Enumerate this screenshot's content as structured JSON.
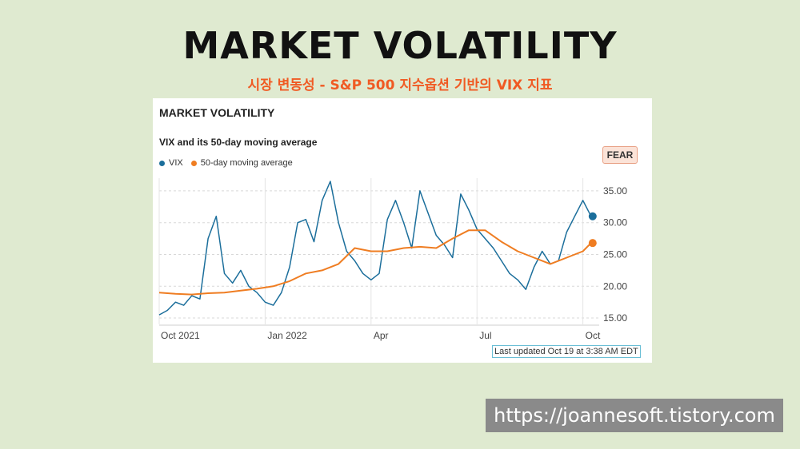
{
  "slide": {
    "title": "MARKET VOLATILITY",
    "subtitle": "시장 변동성 - S&P 500 지수옵션 기반의 VIX 지표",
    "watermark": "https://joannesoft.tistory.com"
  },
  "card": {
    "title": "MARKET VOLATILITY",
    "subtitle": "VIX and its 50-day moving average",
    "badge": "FEAR",
    "updated": "Last updated Oct 19 at 3:38 AM EDT"
  },
  "chart_data": {
    "type": "line",
    "title": "VIX and its 50-day moving average",
    "xlabel": "",
    "ylabel": "",
    "ylim": [
      14.0,
      37.0
    ],
    "yticks": [
      15.0,
      20.0,
      25.0,
      30.0,
      35.0
    ],
    "ytick_labels": [
      "15.00",
      "20.00",
      "25.00",
      "30.00",
      "35.00"
    ],
    "xtick_labels": [
      "Oct 2021",
      "Jan 2022",
      "Apr",
      "Jul",
      "Oct"
    ],
    "xtick_positions": [
      0,
      13,
      26,
      39,
      52
    ],
    "xlim": [
      0,
      54
    ],
    "colors": {
      "vix": "#1b6e9b",
      "ma": "#ef7d22"
    },
    "series": [
      {
        "name": "VIX",
        "x": [
          0,
          1,
          2,
          3,
          4,
          5,
          6,
          7,
          8,
          9,
          10,
          11,
          12,
          13,
          14,
          15,
          16,
          17,
          18,
          19,
          20,
          21,
          22,
          23,
          24,
          25,
          26,
          27,
          28,
          29,
          30,
          31,
          32,
          33,
          34,
          35,
          36,
          37,
          38,
          39,
          40,
          41,
          42,
          43,
          44,
          45,
          46,
          47,
          48,
          49,
          50,
          51,
          52,
          53
        ],
        "values": [
          15.5,
          16.2,
          17.5,
          17.0,
          18.5,
          18.0,
          27.5,
          31.0,
          22.0,
          20.5,
          22.5,
          20.0,
          19.0,
          17.5,
          17.0,
          19.0,
          23.0,
          30.0,
          30.5,
          27.0,
          33.5,
          36.5,
          30.0,
          25.5,
          24.0,
          22.0,
          21.0,
          22.0,
          30.5,
          33.5,
          30.0,
          26.0,
          35.0,
          31.5,
          28.0,
          26.5,
          24.5,
          34.5,
          32.0,
          29.0,
          27.5,
          26.0,
          24.0,
          22.0,
          21.0,
          19.5,
          23.0,
          25.5,
          23.5,
          24.0,
          28.5,
          31.0,
          33.5,
          31.0
        ],
        "last_value": 31.0
      },
      {
        "name": "50-day moving average",
        "x": [
          0,
          2,
          4,
          6,
          8,
          10,
          12,
          14,
          16,
          18,
          20,
          22,
          24,
          26,
          28,
          30,
          32,
          34,
          36,
          38,
          40,
          42,
          44,
          46,
          48,
          50,
          52,
          53
        ],
        "values": [
          19.0,
          18.8,
          18.7,
          18.9,
          19.0,
          19.3,
          19.6,
          20.0,
          20.8,
          22.0,
          22.5,
          23.5,
          26.0,
          25.5,
          25.5,
          26.0,
          26.2,
          26.0,
          27.5,
          28.8,
          28.8,
          27.0,
          25.5,
          24.5,
          23.5,
          24.5,
          25.5,
          26.8
        ],
        "last_value": 26.8
      }
    ],
    "legend": [
      "VIX",
      "50-day moving average"
    ]
  }
}
